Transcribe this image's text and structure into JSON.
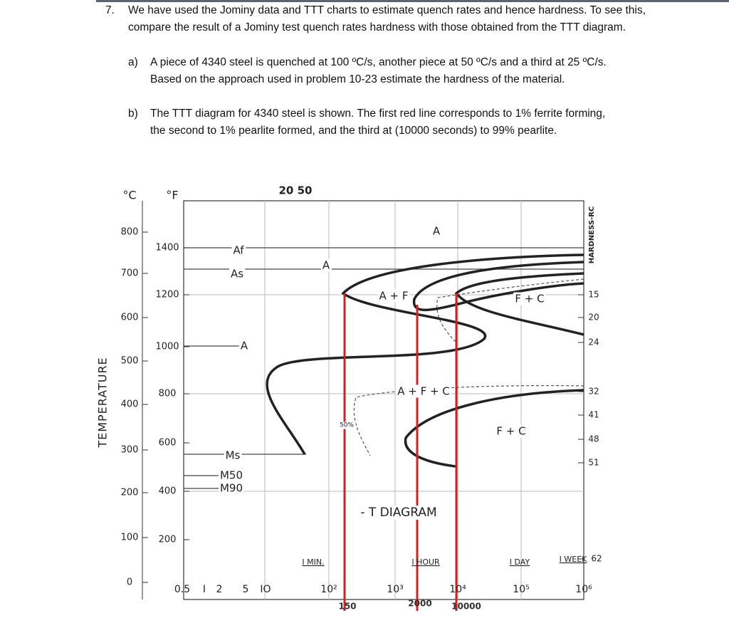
{
  "question": {
    "number": "7.",
    "text": "We have used the Jominy data and TTT charts to estimate quench rates and hence hardness. To see this, compare the result of a Jominy test quench rates hardness with those obtained from the TTT diagram.",
    "items": [
      {
        "label": "a)",
        "text": "A piece of 4340 steel is quenched at 100 ºC/s, another piece at 50 ºC/s and a third at 25 ºC/s. Based on the approach used in problem 10-23 estimate the hardness of the material."
      },
      {
        "label": "b)",
        "text": "The TTT diagram for 4340 steel is shown. The first red line corresponds to 1% ferrite forming, the second to 1% pearlite formed, and the third at (10000 seconds) to 99% pearlite."
      }
    ]
  },
  "diagram": {
    "celsius_unit": "°C",
    "fahrenheit_unit": "°F",
    "y_axis_title": "TEMPERATURE",
    "right_axis_title": "HARDNESS-RC",
    "top_label": "20 50",
    "celsius_ticks": [
      800,
      700,
      600,
      500,
      400,
      300,
      200,
      100,
      0
    ],
    "fahrenheit_ticks": [
      1400,
      1200,
      1000,
      800,
      600,
      400,
      200
    ],
    "hardness_ticks": [
      15,
      20,
      24,
      32,
      41,
      48,
      51,
      62
    ],
    "time_ticks": [
      "0.5",
      "I",
      "2",
      "5",
      "IO",
      "10²",
      "10³",
      "10⁴",
      "10⁵",
      "10⁶"
    ],
    "time_units": [
      "I MIN.",
      "I HOUR",
      "I DAY",
      "I WEEK"
    ],
    "region_labels": [
      "A",
      "Af",
      "As",
      "A",
      "A + F",
      "F + C",
      "A",
      "A + F + C",
      "50%",
      "F + C",
      "Ms",
      "M50",
      "M90",
      "- T DIAGRAM"
    ],
    "red_line_labels": [
      "150",
      "2000",
      "10000"
    ]
  }
}
